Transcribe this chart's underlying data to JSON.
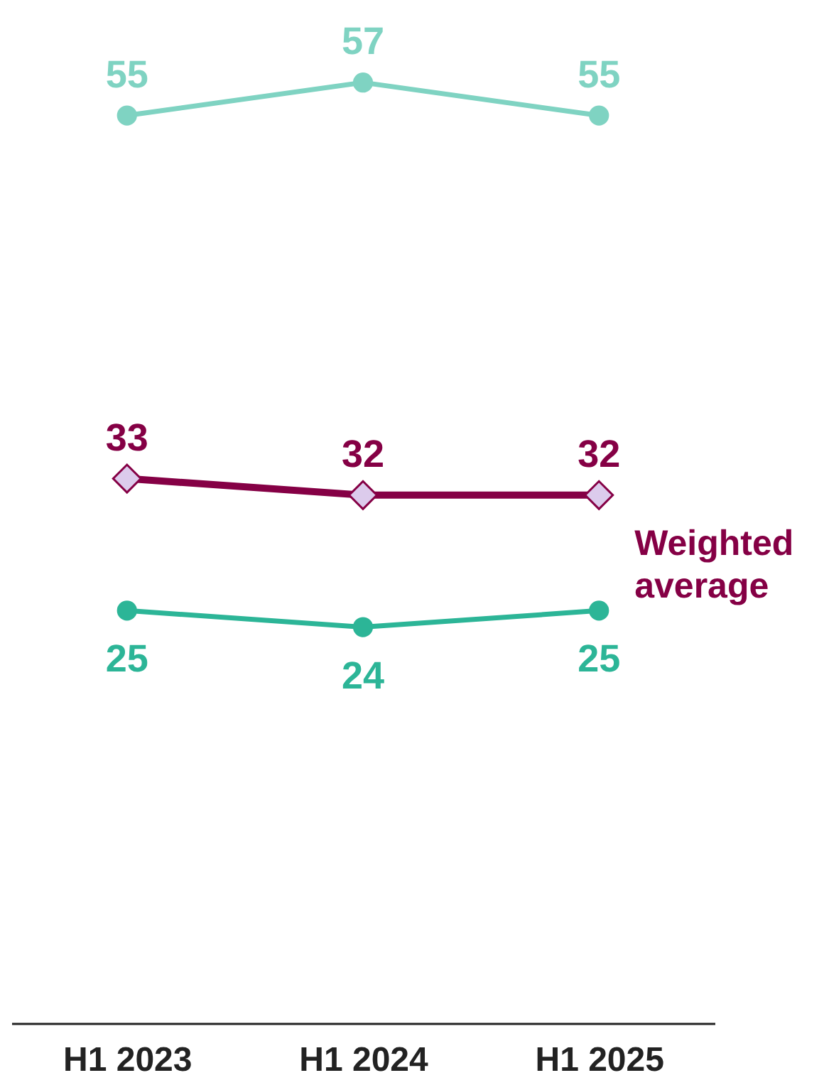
{
  "chart_data": {
    "type": "line",
    "categories": [
      "H1 2023",
      "H1 2024",
      "H1 2025"
    ],
    "series": [
      {
        "color": "#7fd3c2",
        "values": [
          55,
          57,
          55
        ],
        "marker": "circle"
      },
      {
        "name": "Weighted average",
        "color": "#850045",
        "values": [
          33,
          32,
          32
        ],
        "marker": "diamond"
      },
      {
        "color": "#2cb597",
        "values": [
          25,
          24,
          25
        ],
        "marker": "circle"
      }
    ],
    "ylim": [
      0,
      62
    ],
    "tick_labels": "x",
    "data_labels": true,
    "grid": false
  }
}
